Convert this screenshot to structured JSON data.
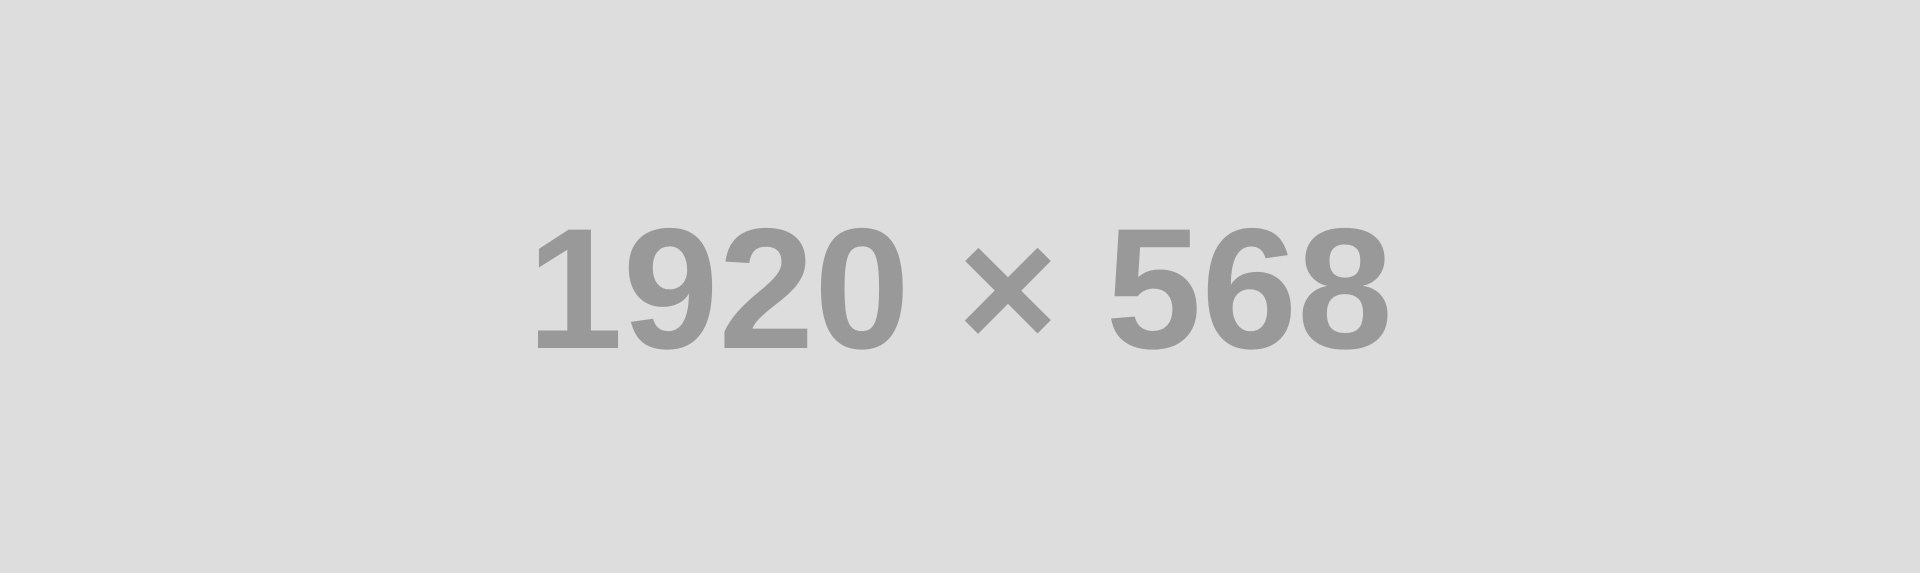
{
  "placeholder": {
    "label": "1920 × 568",
    "background_color": "#dddddd",
    "text_color": "#999999"
  }
}
